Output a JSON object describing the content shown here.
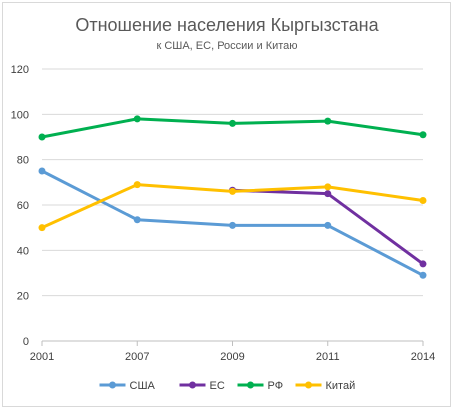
{
  "chart_data": {
    "type": "line",
    "title": "Отношение населения Кыргызстана",
    "subtitle": "к США, ЕС, России и Китаю",
    "categories": [
      "2001",
      "2007",
      "2009",
      "2011",
      "2014"
    ],
    "ylim": [
      0,
      120
    ],
    "yticks": [
      0,
      20,
      40,
      60,
      80,
      100,
      120
    ],
    "grid": true,
    "legend_position": "bottom",
    "series": [
      {
        "name": "США",
        "color": "#5b9bd5",
        "values": [
          75,
          53.5,
          51,
          51,
          29
        ]
      },
      {
        "name": "ЕС",
        "color": "#7030a0",
        "values": [
          null,
          null,
          66.5,
          65,
          34
        ]
      },
      {
        "name": "РФ",
        "color": "#00b050",
        "values": [
          90,
          98,
          96,
          97,
          91
        ]
      },
      {
        "name": "Китай",
        "color": "#ffc000",
        "values": [
          50,
          69,
          66,
          68,
          62
        ]
      }
    ]
  }
}
